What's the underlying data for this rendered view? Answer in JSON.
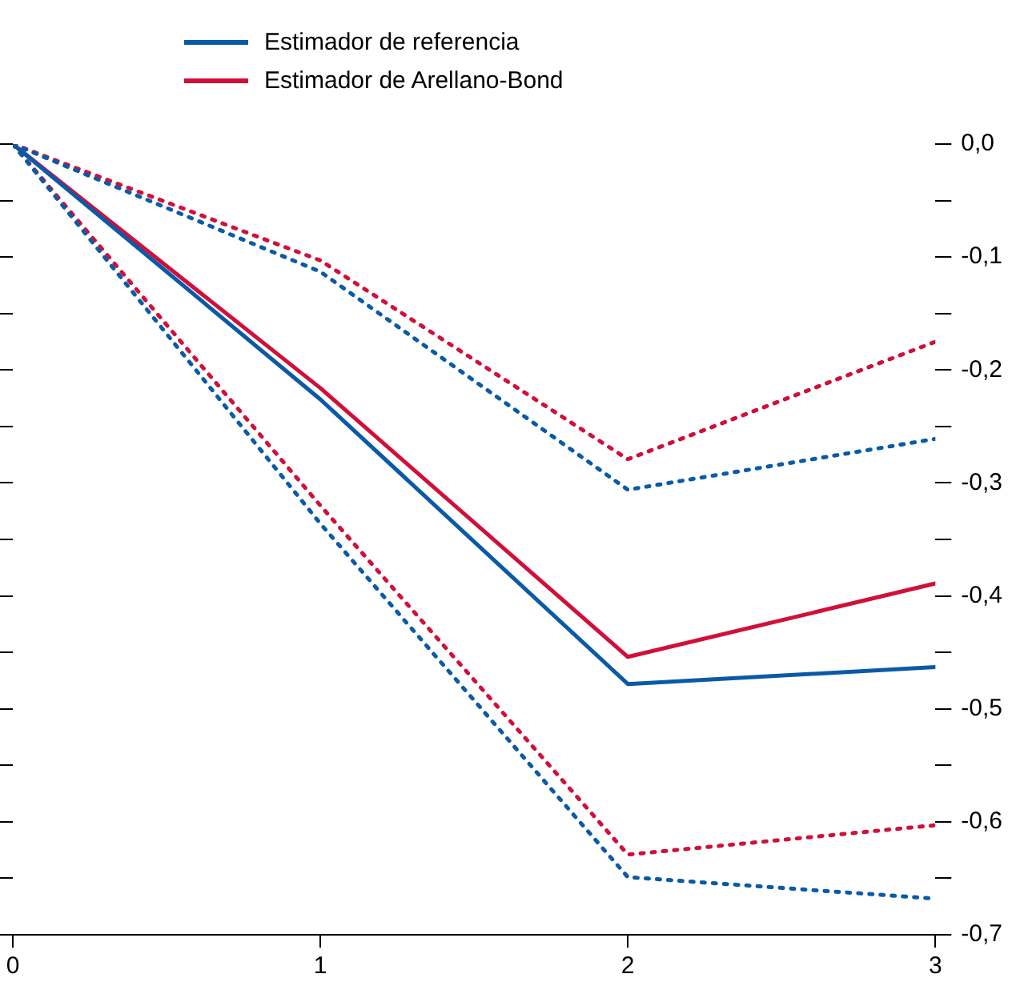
{
  "chart_data": {
    "type": "line",
    "x": [
      0,
      1,
      2,
      3
    ],
    "xlim": [
      0,
      3
    ],
    "xticks": [
      0,
      1,
      2,
      3
    ],
    "ylim": [
      -0.7,
      0
    ],
    "yticks": [
      {
        "value": 0,
        "label": "0,0"
      },
      {
        "value": -0.05,
        "label": null
      },
      {
        "value": -0.1,
        "label": "-0,1"
      },
      {
        "value": -0.15,
        "label": null
      },
      {
        "value": -0.2,
        "label": "-0,2"
      },
      {
        "value": -0.25,
        "label": null
      },
      {
        "value": -0.3,
        "label": "-0,3"
      },
      {
        "value": -0.35,
        "label": null
      },
      {
        "value": -0.4,
        "label": "-0,4"
      },
      {
        "value": -0.45,
        "label": null
      },
      {
        "value": -0.5,
        "label": "-0,5"
      },
      {
        "value": -0.55,
        "label": null
      },
      {
        "value": -0.6,
        "label": "-0,6"
      },
      {
        "value": -0.65,
        "label": null
      },
      {
        "value": -0.7,
        "label": "-0,7"
      }
    ],
    "grid": false,
    "legend": "top left",
    "marker": "none",
    "series": [
      {
        "name": "Estimador de referencia",
        "color": "#0a5aa8",
        "values": [
          0,
          -0.226,
          -0.478,
          -0.463
        ],
        "line_style": "solid"
      },
      {
        "name": "Estimador de Arellano-Bond",
        "color": "#d0103a",
        "values": [
          0,
          -0.216,
          -0.454,
          -0.389
        ],
        "line_style": "solid"
      },
      {
        "color": "#0a5aa8",
        "values": [
          0,
          -0.113,
          -0.306,
          -0.261
        ],
        "line_style": "dotted"
      },
      {
        "color": "#0a5aa8",
        "values": [
          0,
          -0.336,
          -0.649,
          -0.668
        ],
        "line_style": "dotted"
      },
      {
        "color": "#d0103a",
        "values": [
          0,
          -0.103,
          -0.279,
          -0.175
        ],
        "line_style": "dotted"
      },
      {
        "color": "#d0103a",
        "values": [
          0,
          -0.32,
          -0.629,
          -0.603
        ],
        "line_style": "dotted"
      }
    ]
  }
}
